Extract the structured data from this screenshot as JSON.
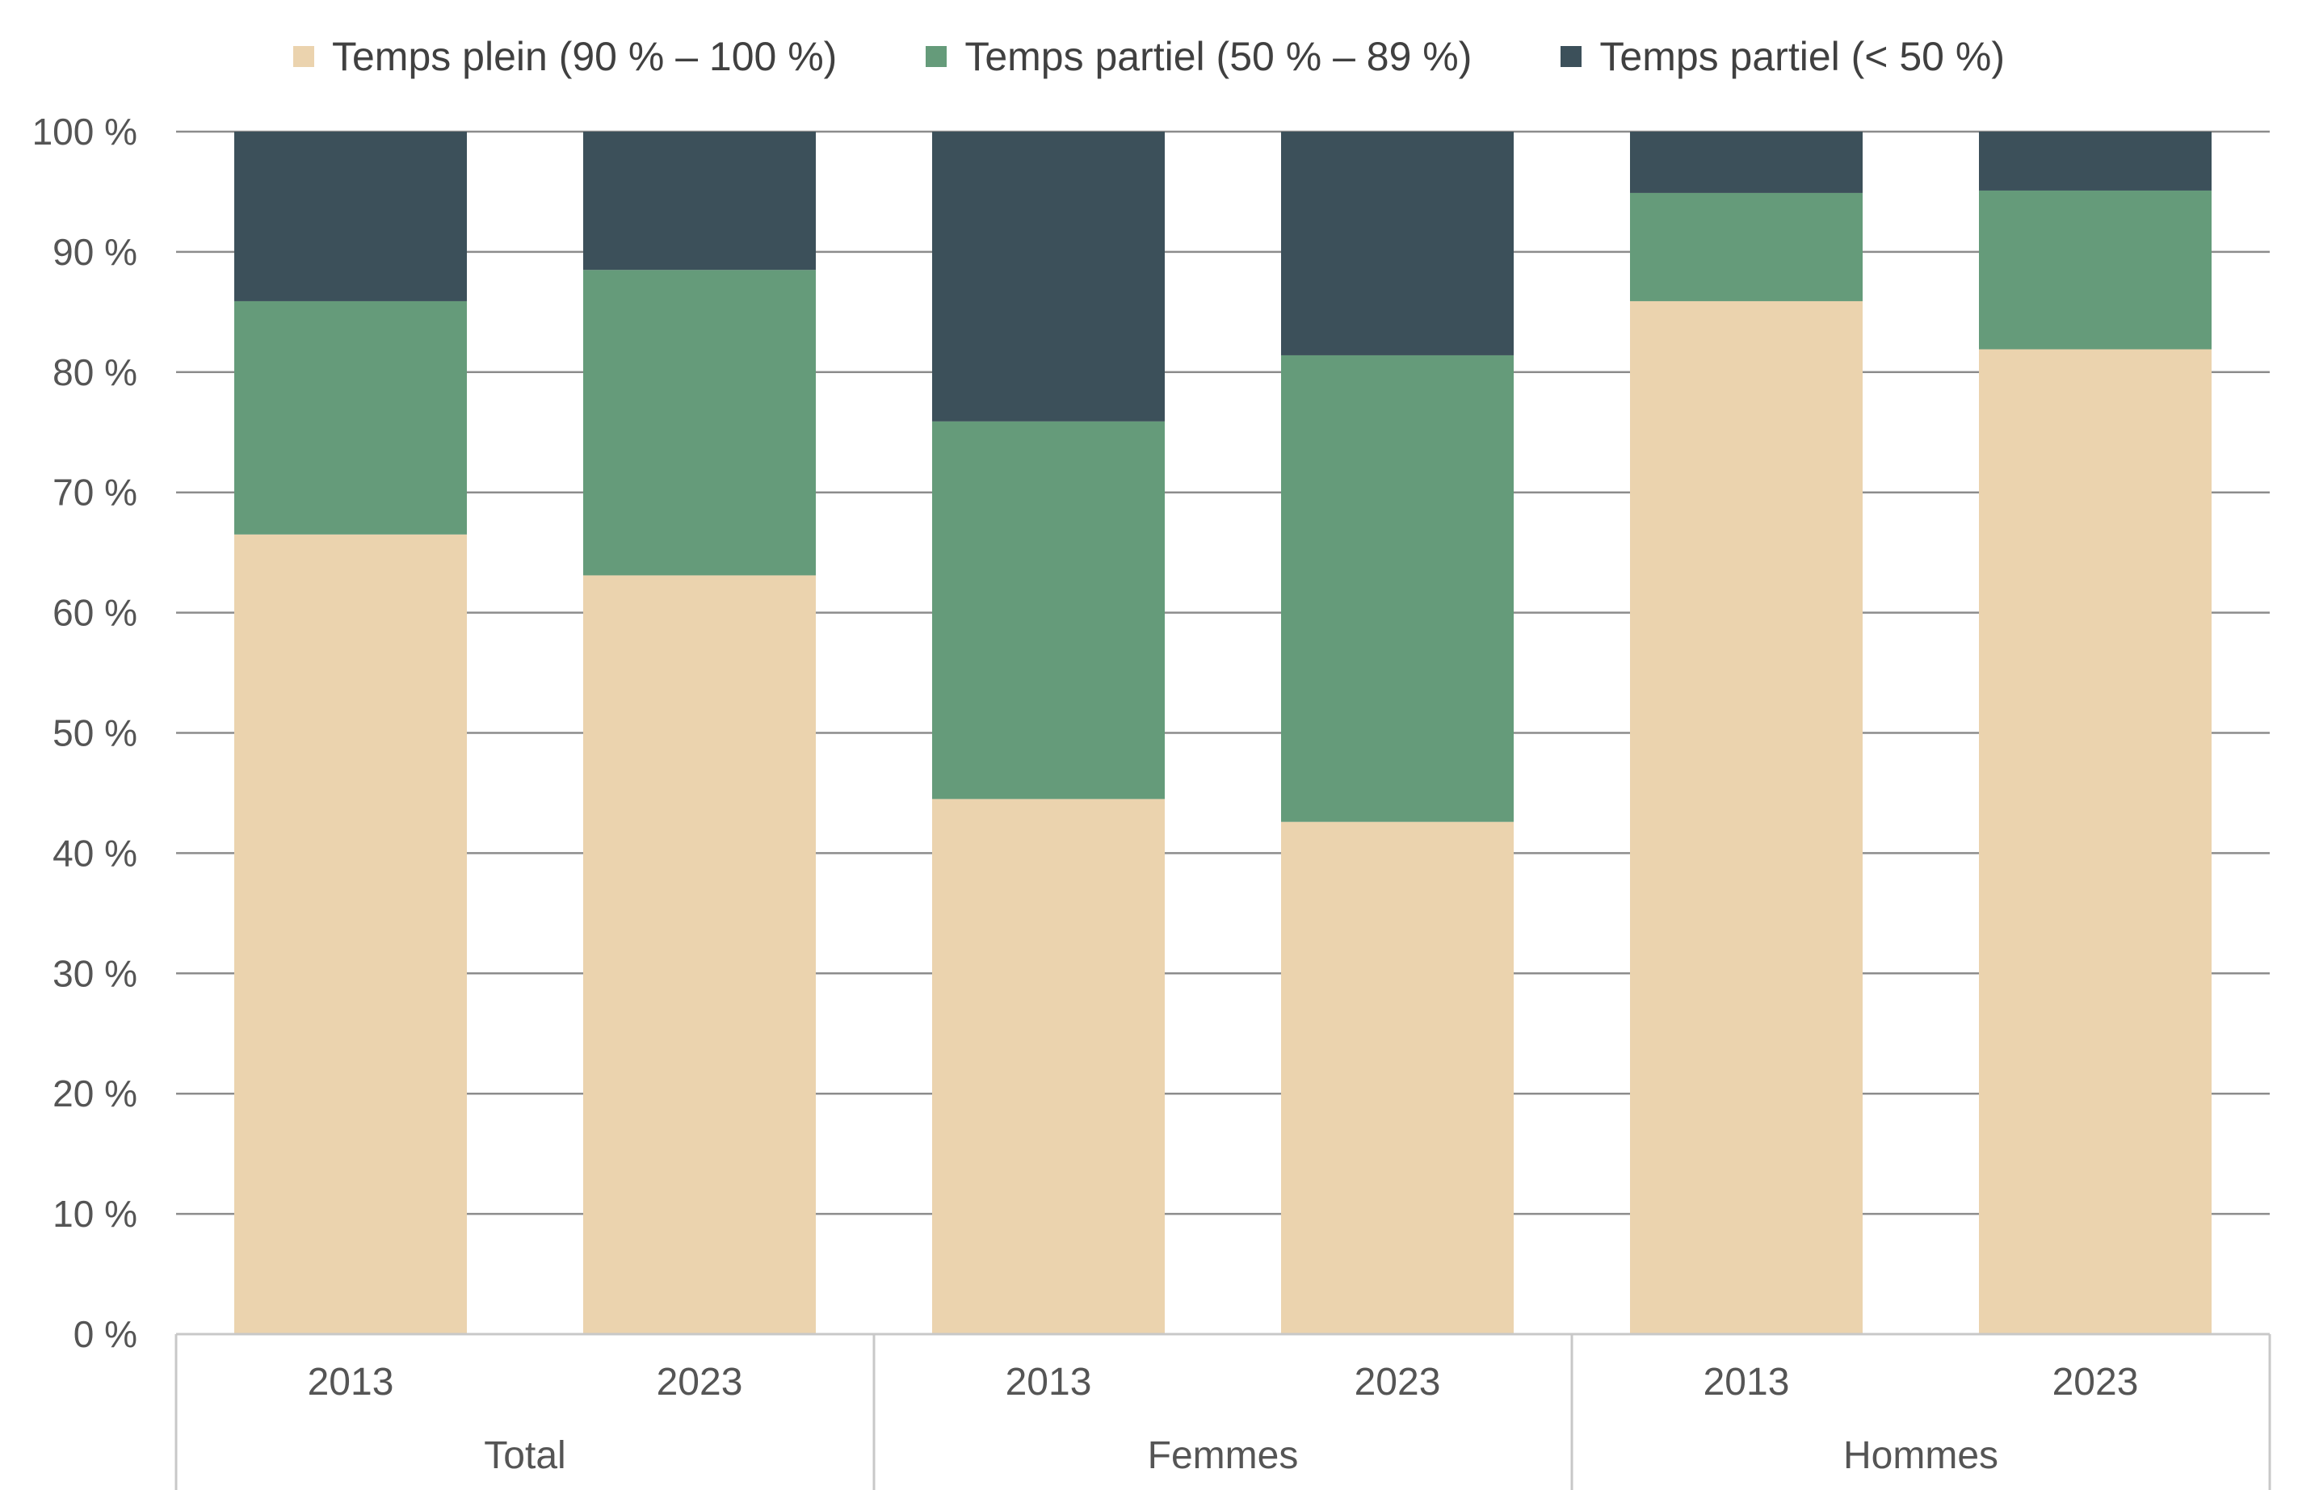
{
  "chart_data": {
    "type": "bar",
    "stacked": true,
    "title": "",
    "xlabel": "",
    "ylabel": "",
    "ylim": [
      0,
      100
    ],
    "yticks": [
      "0 %",
      "10 %",
      "20 %",
      "30 %",
      "40 %",
      "50 %",
      "60 %",
      "70 %",
      "80 %",
      "90 %",
      "100 %"
    ],
    "grid": true,
    "legend_position": "top",
    "groups": [
      "Total",
      "Femmes",
      "Hommes"
    ],
    "categories": [
      "2013",
      "2023",
      "2013",
      "2023",
      "2013",
      "2023"
    ],
    "series": [
      {
        "name": "Temps plein (90 % – 100 %)",
        "color": "#ebd3ae",
        "values": [
          66.5,
          63.1,
          44.5,
          42.6,
          85.9,
          81.9
        ]
      },
      {
        "name": "Temps partiel (50 % – 89 %)",
        "color": "#659b7a",
        "values": [
          19.4,
          25.4,
          31.4,
          38.8,
          9.0,
          13.2
        ]
      },
      {
        "name": "Temps partiel (< 50 %)",
        "color": "#3c505a",
        "values": [
          14.1,
          11.5,
          24.1,
          18.6,
          5.1,
          4.9
        ]
      }
    ]
  }
}
